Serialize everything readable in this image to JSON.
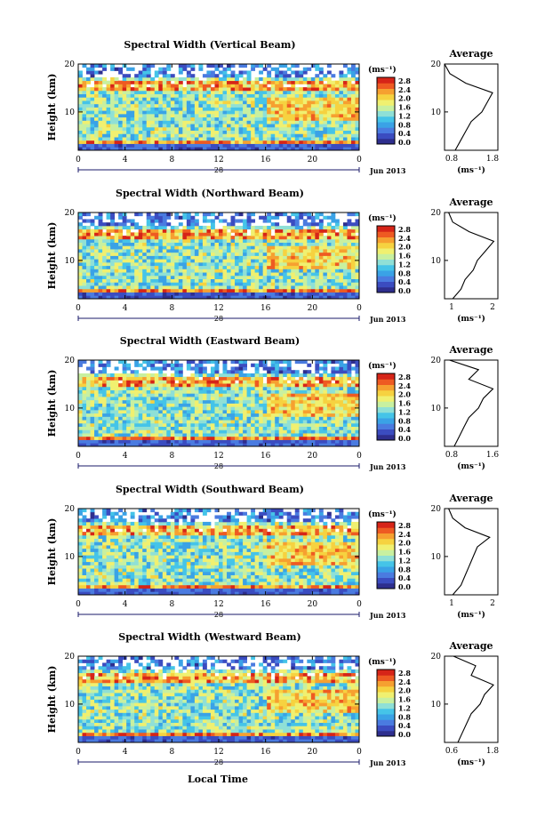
{
  "month_label": "Jun 2013",
  "day_label": "28",
  "x_axis_label": "Local Time",
  "unit_label": "(ms⁻¹)",
  "y_axis_label": "Height (km)",
  "avg_title": "Average",
  "avg_unit": "(ms⁻¹)",
  "x_ticks": [
    "0",
    "4",
    "8",
    "12",
    "16",
    "20",
    "0"
  ],
  "y_ticks": [
    "20",
    "10"
  ],
  "colorbar_ticks": [
    "2.8",
    "2.4",
    "2.0",
    "1.6",
    "1.2",
    "0.8",
    "0.4",
    "0.0"
  ],
  "colors": {
    "scale": [
      "#2e2e8e",
      "#3b4cc0",
      "#4a7be0",
      "#3aa2e6",
      "#45c4e8",
      "#8fe0d6",
      "#c8f0a0",
      "#f0f070",
      "#f6d240",
      "#f6a030",
      "#ee5a22",
      "#d62418"
    ]
  },
  "chart_data": [
    {
      "type": "heatmap",
      "title": "Spectral Width (Vertical Beam)",
      "xlabel": "",
      "ylabel": "Height (km)",
      "xlim": [
        0,
        24
      ],
      "ylim": [
        2,
        20
      ],
      "colorbar": {
        "label": "(ms⁻¹)",
        "range": [
          0.0,
          2.8
        ]
      },
      "average_profile": {
        "title": "Average",
        "xlabel": "(ms⁻¹)",
        "xticks": [
          "0.8",
          "1.8"
        ],
        "xlim": [
          0.8,
          1.8
        ],
        "height": [
          2,
          4,
          6,
          8,
          10,
          12,
          14,
          16,
          18,
          20
        ],
        "width": [
          1.0,
          1.1,
          1.2,
          1.3,
          1.5,
          1.6,
          1.7,
          1.2,
          0.9,
          0.8
        ]
      }
    },
    {
      "type": "heatmap",
      "title": "Spectral Width (Northward Beam)",
      "xlabel": "",
      "ylabel": "Height (km)",
      "xlim": [
        0,
        24
      ],
      "ylim": [
        2,
        20
      ],
      "colorbar": {
        "label": "(ms⁻¹)",
        "range": [
          0.0,
          2.8
        ]
      },
      "average_profile": {
        "title": "Average",
        "xlabel": "(ms⁻¹)",
        "xticks": [
          "1",
          "2"
        ],
        "xlim": [
          0.8,
          2.1
        ],
        "height": [
          2,
          4,
          6,
          8,
          10,
          12,
          14,
          16,
          18,
          20
        ],
        "width": [
          1.0,
          1.2,
          1.3,
          1.5,
          1.6,
          1.8,
          2.0,
          1.4,
          1.0,
          0.9
        ]
      }
    },
    {
      "type": "heatmap",
      "title": "Spectral Width (Eastward Beam)",
      "xlabel": "",
      "ylabel": "Height (km)",
      "xlim": [
        0,
        24
      ],
      "ylim": [
        2,
        20
      ],
      "colorbar": {
        "label": "(ms⁻¹)",
        "range": [
          0.0,
          2.8
        ]
      },
      "average_profile": {
        "title": "Average",
        "xlabel": "(ms⁻¹)",
        "xticks": [
          "0.8",
          "1.6"
        ],
        "xlim": [
          0.8,
          1.9
        ],
        "height": [
          2,
          4,
          6,
          8,
          10,
          12,
          14,
          16,
          18,
          20
        ],
        "width": [
          1.0,
          1.1,
          1.2,
          1.3,
          1.5,
          1.6,
          1.8,
          1.3,
          1.5,
          0.9
        ]
      }
    },
    {
      "type": "heatmap",
      "title": "Spectral Width (Southward Beam)",
      "xlabel": "",
      "ylabel": "Height (km)",
      "xlim": [
        0,
        24
      ],
      "ylim": [
        2,
        20
      ],
      "colorbar": {
        "label": "(ms⁻¹)",
        "range": [
          0.0,
          2.8
        ]
      },
      "average_profile": {
        "title": "Average",
        "xlabel": "(ms⁻¹)",
        "xticks": [
          "1",
          "2"
        ],
        "xlim": [
          0.8,
          2.1
        ],
        "height": [
          2,
          4,
          6,
          8,
          10,
          12,
          14,
          16,
          18,
          20
        ],
        "width": [
          1.0,
          1.2,
          1.3,
          1.4,
          1.5,
          1.6,
          1.9,
          1.3,
          1.0,
          0.9
        ]
      }
    },
    {
      "type": "heatmap",
      "title": "Spectral Width (Westward Beam)",
      "xlabel": "Local Time",
      "ylabel": "Height (km)",
      "xlim": [
        0,
        24
      ],
      "ylim": [
        2,
        20
      ],
      "colorbar": {
        "label": "(ms⁻¹)",
        "range": [
          0.0,
          2.8
        ]
      },
      "average_profile": {
        "title": "Average",
        "xlabel": "(ms⁻¹)",
        "xticks": [
          "0.6",
          "1.8"
        ],
        "xlim": [
          0.6,
          1.8
        ],
        "height": [
          2,
          4,
          6,
          8,
          10,
          12,
          14,
          16,
          18,
          20
        ],
        "width": [
          0.9,
          1.0,
          1.1,
          1.2,
          1.4,
          1.5,
          1.7,
          1.2,
          1.3,
          0.8
        ]
      }
    }
  ]
}
